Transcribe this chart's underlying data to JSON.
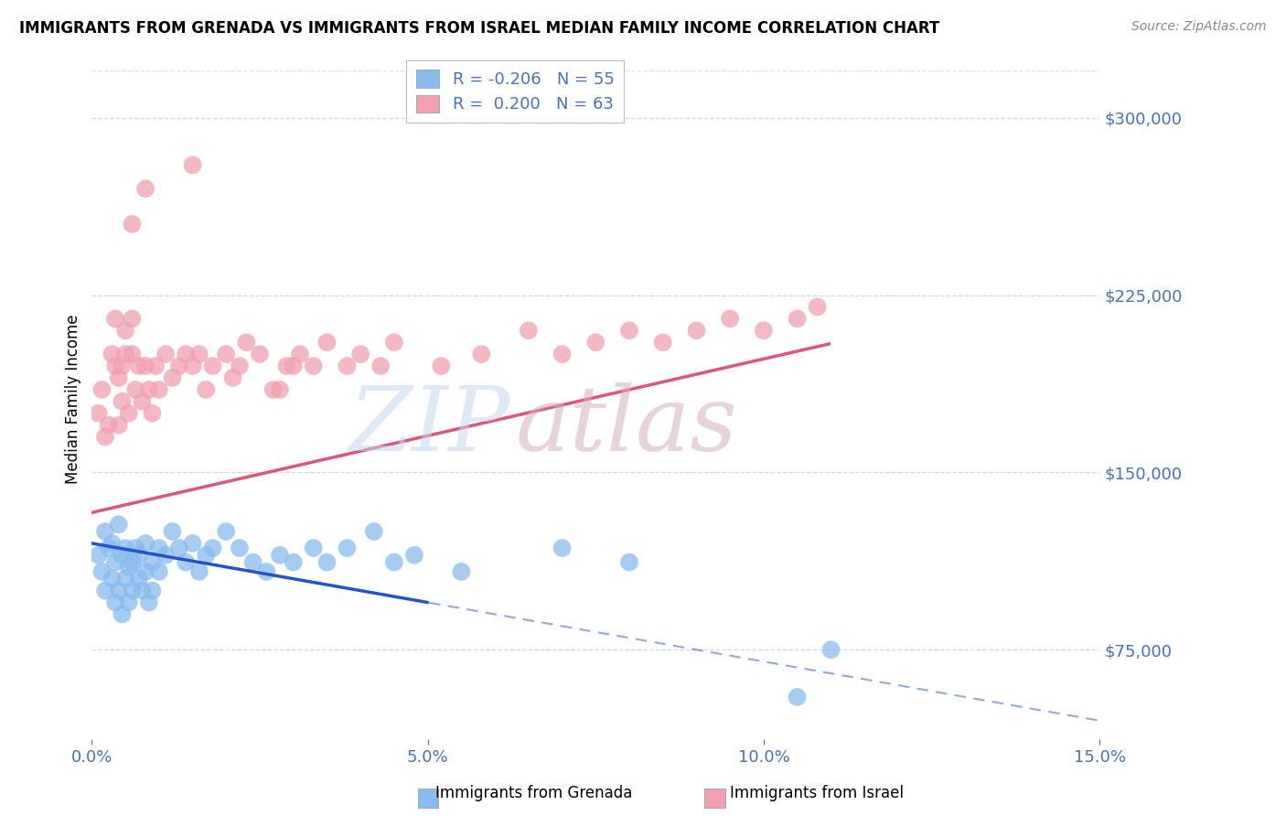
{
  "title": "IMMIGRANTS FROM GRENADA VS IMMIGRANTS FROM ISRAEL MEDIAN FAMILY INCOME CORRELATION CHART",
  "source": "Source: ZipAtlas.com",
  "ylabel": "Median Family Income",
  "xlim": [
    0.0,
    15.0
  ],
  "ylim": [
    37000,
    325000
  ],
  "yticks": [
    75000,
    150000,
    225000,
    300000
  ],
  "ytick_labels": [
    "$75,000",
    "$150,000",
    "$225,000",
    "$300,000"
  ],
  "xticks": [
    0.0,
    5.0,
    10.0,
    15.0
  ],
  "xtick_labels": [
    "0.0%",
    "5.0%",
    "10.0%",
    "15.0%"
  ],
  "grenada_color": "#88bbee",
  "israel_color": "#f0a0b0",
  "trend_grenada_color": "#2255cc",
  "trend_israel_color": "#dd5577",
  "legend_R_grenada": "-0.206",
  "legend_N_grenada": "55",
  "legend_R_israel": "0.200",
  "legend_N_israel": "63",
  "background_color": "#ffffff",
  "grid_color": "#cccccc",
  "axis_color": "#4472c4",
  "grenada_slope": -5000,
  "grenada_intercept": 120000,
  "israel_slope": 6500,
  "israel_intercept": 133000,
  "solid_end_grenada": 5.0,
  "solid_end_israel": 11.0
}
